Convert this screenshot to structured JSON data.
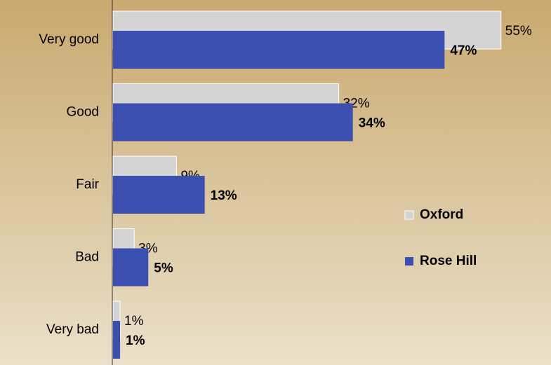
{
  "chart_data": {
    "type": "bar",
    "orientation": "horizontal",
    "categories": [
      "Very good",
      "Good",
      "Fair",
      "Bad",
      "Very bad"
    ],
    "series": [
      {
        "name": "Oxford",
        "color": "#d4d4d4",
        "values": [
          55,
          32,
          9,
          3,
          1
        ],
        "value_labels": [
          "55%",
          "32%",
          "9%",
          "3%",
          "1%"
        ]
      },
      {
        "name": "Rose Hill",
        "color": "#3a4fb0",
        "values": [
          47,
          34,
          13,
          5,
          1
        ],
        "value_labels": [
          "47%",
          "34%",
          "13%",
          "5%",
          "1%"
        ]
      }
    ],
    "legend": "right"
  }
}
